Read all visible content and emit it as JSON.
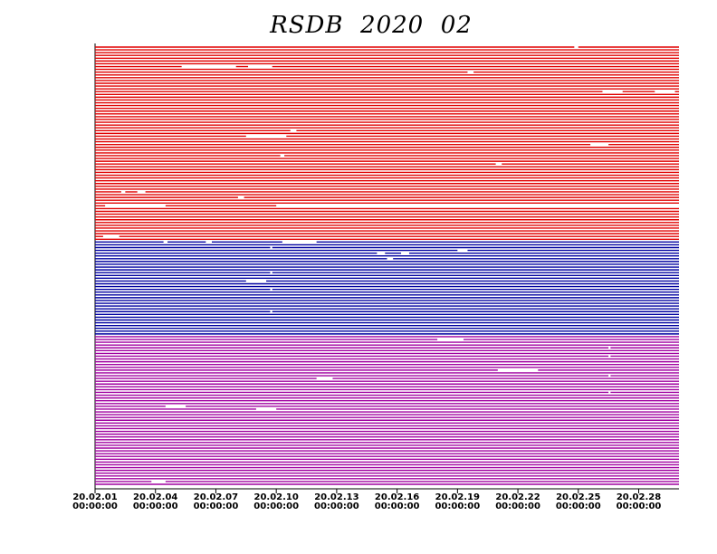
{
  "chart_data": {
    "type": "availability",
    "title": "RSDB  2020  02",
    "xlim": [
      1,
      30
    ],
    "xticks": [
      {
        "value": 1,
        "label": "20.02.01 00:00:00"
      },
      {
        "value": 4,
        "label": "20.02.04 00:00:00"
      },
      {
        "value": 7,
        "label": "20.02.07 00:00:00"
      },
      {
        "value": 10,
        "label": "20.02.10 00:00:00"
      },
      {
        "value": 13,
        "label": "20.02.13 00:00:00"
      },
      {
        "value": 16,
        "label": "20.02.16 00:00:00"
      },
      {
        "value": 19,
        "label": "20.02.19 00:00:00"
      },
      {
        "value": 22,
        "label": "20.02.22 00:00:00"
      },
      {
        "value": 25,
        "label": "20.02.25 00:00:00"
      },
      {
        "value": 28,
        "label": "20.02.28 00:00:00"
      }
    ],
    "groups": [
      {
        "color": "#e00000",
        "rows": [
          [
            [
              1,
              24.8
            ],
            [
              25,
              30
            ]
          ],
          [
            [
              1,
              30
            ]
          ],
          [
            [
              1,
              30
            ]
          ],
          [
            [
              1,
              30
            ]
          ],
          [
            [
              1,
              30
            ]
          ],
          [
            [
              1,
              30
            ]
          ],
          [
            [
              1,
              30
            ]
          ],
          [
            [
              1,
              5.3
            ],
            [
              8,
              8.6
            ],
            [
              9.8,
              30
            ]
          ],
          [
            [
              1,
              30
            ]
          ],
          [
            [
              1,
              19.5
            ],
            [
              19.8,
              30
            ]
          ],
          [
            [
              1,
              30
            ]
          ],
          [
            [
              1,
              30
            ]
          ],
          [
            [
              1,
              30
            ]
          ],
          [
            [
              1,
              30
            ]
          ],
          [
            [
              1,
              30
            ]
          ],
          [
            [
              1,
              30
            ]
          ],
          [
            [
              1,
              26.2
            ],
            [
              27.2,
              28.8
            ],
            [
              29.8,
              30
            ]
          ],
          [
            [
              1,
              30
            ]
          ],
          [
            [
              1,
              30
            ]
          ],
          [
            [
              1,
              30
            ]
          ],
          [
            [
              1,
              30
            ]
          ],
          [
            [
              1,
              30
            ]
          ],
          [
            [
              1,
              30
            ]
          ],
          [
            [
              1,
              30
            ]
          ],
          [
            [
              1,
              30
            ]
          ],
          [
            [
              1,
              30
            ]
          ],
          [
            [
              1,
              30
            ]
          ],
          [
            [
              1,
              30
            ]
          ],
          [
            [
              1,
              30
            ]
          ],
          [
            [
              1,
              30
            ]
          ],
          [
            [
              1,
              10.7
            ],
            [
              11,
              30
            ]
          ],
          [
            [
              1,
              30
            ]
          ],
          [
            [
              1,
              8.5
            ],
            [
              10.5,
              30
            ]
          ],
          [
            [
              1,
              30
            ]
          ],
          [
            [
              1,
              30
            ]
          ],
          [
            [
              1,
              25.6
            ],
            [
              26.5,
              30
            ]
          ],
          [
            [
              1,
              30
            ]
          ],
          [
            [
              1,
              30
            ]
          ],
          [
            [
              1,
              30
            ]
          ],
          [
            [
              1,
              10.2
            ],
            [
              10.4,
              30
            ]
          ],
          [
            [
              1,
              30
            ]
          ],
          [
            [
              1,
              30
            ]
          ],
          [
            [
              1,
              20.9
            ],
            [
              21.2,
              30
            ]
          ],
          [
            [
              1,
              30
            ]
          ],
          [
            [
              1,
              30
            ]
          ],
          [
            [
              1,
              30
            ]
          ],
          [
            [
              1,
              30
            ]
          ],
          [
            [
              1,
              30
            ]
          ],
          [
            [
              1,
              30
            ]
          ],
          [
            [
              1,
              30
            ]
          ],
          [
            [
              1,
              30
            ]
          ],
          [
            [
              1,
              30
            ]
          ],
          [
            [
              1,
              2.3
            ],
            [
              2.5,
              3.1
            ],
            [
              3.5,
              30
            ]
          ],
          [
            [
              1,
              30
            ]
          ],
          [
            [
              1,
              8.1
            ],
            [
              8.4,
              30
            ]
          ],
          [
            [
              1,
              30
            ]
          ],
          [
            [
              1,
              30
            ]
          ],
          [
            [
              1,
              1.5
            ],
            [
              4.5,
              10
            ]
          ],
          [
            [
              1,
              30
            ]
          ],
          [
            [
              1,
              30
            ]
          ],
          [
            [
              1,
              30
            ]
          ],
          [
            [
              1,
              30
            ]
          ],
          [
            [
              1,
              30
            ]
          ],
          [
            [
              1,
              30
            ]
          ],
          [
            [
              1,
              30
            ]
          ],
          [
            [
              1,
              30
            ]
          ],
          [
            [
              1,
              30
            ]
          ],
          [
            [
              1,
              30
            ]
          ],
          [
            [
              1,
              1.4
            ],
            [
              2.2,
              30
            ]
          ],
          [
            [
              1,
              30
            ]
          ]
        ]
      },
      {
        "color": "#0000a0",
        "rows": [
          [
            [
              1,
              4.4
            ],
            [
              4.6,
              6.5
            ],
            [
              6.8,
              10.3
            ],
            [
              12,
              30
            ]
          ],
          [
            [
              1,
              30
            ]
          ],
          [
            [
              1,
              9.7
            ],
            [
              9.8,
              30
            ]
          ],
          [
            [
              1,
              19
            ],
            [
              19.5,
              30
            ]
          ],
          [
            [
              1,
              15
            ],
            [
              15.4,
              16.2
            ],
            [
              16.6,
              30
            ]
          ],
          [
            [
              1,
              30
            ]
          ],
          [
            [
              1,
              15.5
            ],
            [
              15.8,
              30
            ]
          ],
          [
            [
              1,
              30
            ]
          ],
          [
            [
              1,
              30
            ]
          ],
          [
            [
              1,
              30
            ]
          ],
          [
            [
              1,
              30
            ]
          ],
          [
            [
              1,
              9.7
            ],
            [
              9.8,
              30
            ]
          ],
          [
            [
              1,
              30
            ]
          ],
          [
            [
              1,
              30
            ]
          ],
          [
            [
              1,
              8.5
            ],
            [
              9.5,
              30
            ]
          ],
          [
            [
              1,
              30
            ]
          ],
          [
            [
              1,
              30
            ]
          ],
          [
            [
              1,
              9.7
            ],
            [
              9.8,
              30
            ]
          ],
          [
            [
              1,
              30
            ]
          ],
          [
            [
              1,
              30
            ]
          ],
          [
            [
              1,
              30
            ]
          ],
          [
            [
              1,
              30
            ]
          ],
          [
            [
              1,
              30
            ]
          ],
          [
            [
              1,
              30
            ]
          ],
          [
            [
              1,
              30
            ]
          ],
          [
            [
              1,
              9.7
            ],
            [
              9.8,
              30
            ]
          ],
          [
            [
              1,
              30
            ]
          ],
          [
            [
              1,
              30
            ]
          ],
          [
            [
              1,
              30
            ]
          ],
          [
            [
              1,
              30
            ]
          ],
          [
            [
              1,
              30
            ]
          ],
          [
            [
              1,
              30
            ]
          ],
          [
            [
              1,
              30
            ]
          ],
          [
            [
              1,
              30
            ]
          ]
        ]
      },
      {
        "color": "#a000a0",
        "rows": [
          [
            [
              1,
              30
            ]
          ],
          [
            [
              1,
              18
            ],
            [
              19.3,
              30
            ]
          ],
          [
            [
              1,
              30
            ]
          ],
          [
            [
              1,
              30
            ]
          ],
          [
            [
              1,
              26.5
            ],
            [
              26.6,
              30
            ]
          ],
          [
            [
              1,
              30
            ]
          ],
          [
            [
              1,
              30
            ]
          ],
          [
            [
              1,
              26.5
            ],
            [
              26.6,
              30
            ]
          ],
          [
            [
              1,
              30
            ]
          ],
          [
            [
              1,
              30
            ]
          ],
          [
            [
              1,
              30
            ]
          ],
          [
            [
              1,
              30
            ]
          ],
          [
            [
              1,
              21
            ],
            [
              23,
              30
            ]
          ],
          [
            [
              1,
              30
            ]
          ],
          [
            [
              1,
              26.5
            ],
            [
              26.6,
              30
            ]
          ],
          [
            [
              1,
              12
            ],
            [
              12.8,
              30
            ]
          ],
          [
            [
              1,
              30
            ]
          ],
          [
            [
              1,
              30
            ]
          ],
          [
            [
              1,
              30
            ]
          ],
          [
            [
              1,
              30
            ]
          ],
          [
            [
              1,
              26.5
            ],
            [
              26.6,
              30
            ]
          ],
          [
            [
              1,
              30
            ]
          ],
          [
            [
              1,
              30
            ]
          ],
          [
            [
              1,
              30
            ]
          ],
          [
            [
              1,
              30
            ]
          ],
          [
            [
              1,
              4.5
            ],
            [
              5.5,
              30
            ]
          ],
          [
            [
              1,
              9
            ],
            [
              10,
              30
            ]
          ],
          [
            [
              1,
              30
            ]
          ],
          [
            [
              1,
              30
            ]
          ],
          [
            [
              1,
              30
            ]
          ],
          [
            [
              1,
              30
            ]
          ],
          [
            [
              1,
              30
            ]
          ],
          [
            [
              1,
              30
            ]
          ],
          [
            [
              1,
              30
            ]
          ],
          [
            [
              1,
              30
            ]
          ],
          [
            [
              1,
              30
            ]
          ],
          [
            [
              1,
              30
            ]
          ],
          [
            [
              1,
              30
            ]
          ],
          [
            [
              1,
              30
            ]
          ],
          [
            [
              1,
              30
            ]
          ],
          [
            [
              1,
              30
            ]
          ],
          [
            [
              1,
              30
            ]
          ],
          [
            [
              1,
              30
            ]
          ],
          [
            [
              1,
              30
            ]
          ],
          [
            [
              1,
              30
            ]
          ],
          [
            [
              1,
              30
            ]
          ],
          [
            [
              1,
              30
            ]
          ],
          [
            [
              1,
              30
            ]
          ],
          [
            [
              1,
              30
            ]
          ],
          [
            [
              1,
              30
            ]
          ],
          [
            [
              1,
              30
            ]
          ],
          [
            [
              1,
              30
            ]
          ],
          [
            [
              1,
              3.8
            ],
            [
              4.5,
              30
            ]
          ],
          [
            [
              1,
              30
            ]
          ]
        ]
      }
    ]
  }
}
